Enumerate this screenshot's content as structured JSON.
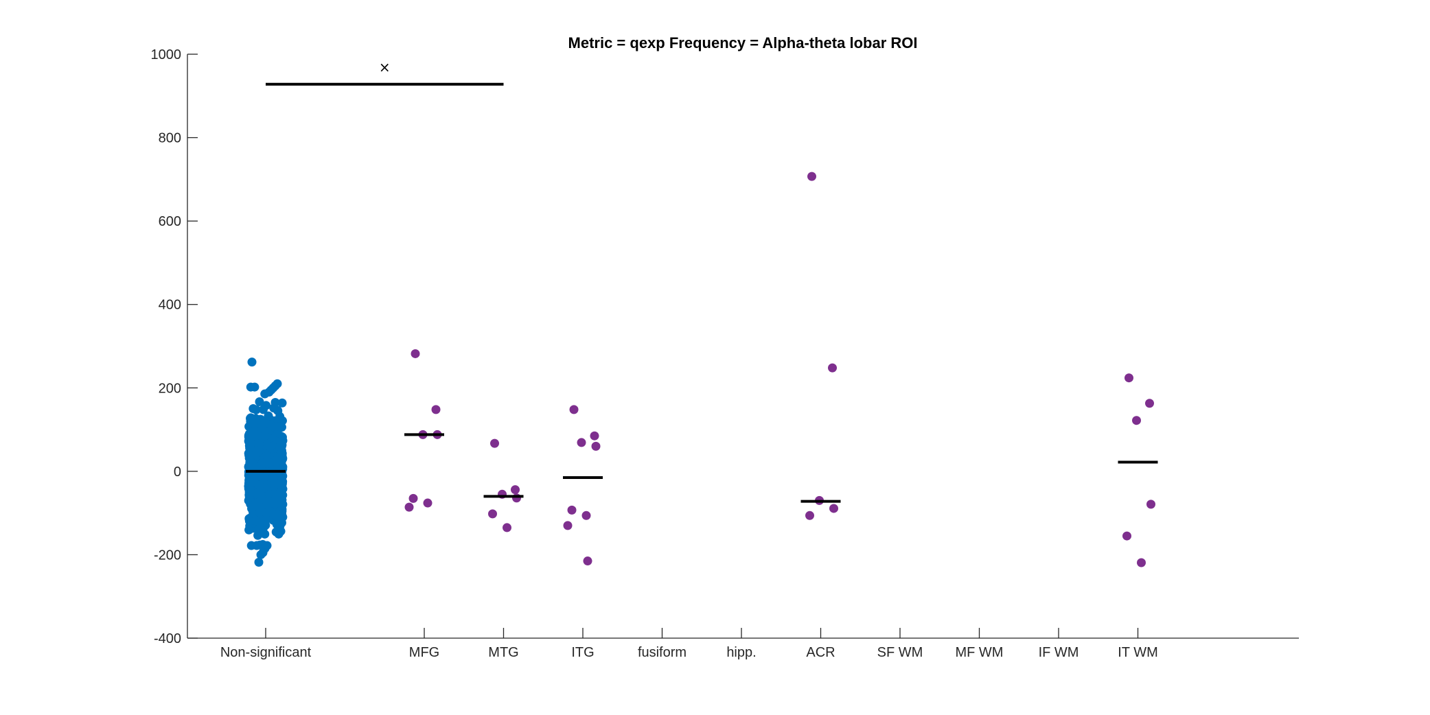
{
  "chart_data": {
    "type": "scatter",
    "title": "Metric = qexp Frequency = Alpha-theta lobar ROI",
    "xlabel": "",
    "ylabel": "",
    "ylim": [
      -400,
      1000
    ],
    "yticks": [
      -400,
      -200,
      0,
      200,
      400,
      600,
      800,
      1000
    ],
    "grid": false,
    "categories": [
      "Non-significant",
      "MFG",
      "MTG",
      "ITG",
      "fusiform",
      "hipp.",
      "ACR",
      "SF WM",
      "MF WM",
      "IF WM",
      "IT WM"
    ],
    "colors": {
      "nonsignificant": "#0072BD",
      "significant": "#7E2F8E",
      "median": "#000000",
      "axis": "#262626"
    },
    "nonsignificant": {
      "category": "Non-significant",
      "count": 1200,
      "median": 0,
      "min": -218,
      "max": 262,
      "notable_points": [
        262,
        210,
        205,
        200,
        195,
        190,
        -178,
        -185,
        -195,
        -200,
        -218
      ]
    },
    "series": [
      {
        "category": "MFG",
        "values": [
          282,
          148,
          88,
          88,
          -65,
          -76,
          -86
        ],
        "median": 88
      },
      {
        "category": "MTG",
        "values": [
          67,
          -44,
          -55,
          -64,
          -102,
          -135
        ],
        "median": -60
      },
      {
        "category": "ITG",
        "values": [
          148,
          85,
          69,
          60,
          -93,
          -106,
          -130,
          -215
        ],
        "median": -15
      },
      {
        "category": "fusiform",
        "values": [],
        "median": null
      },
      {
        "category": "hipp.",
        "values": [],
        "median": null
      },
      {
        "category": "ACR",
        "values": [
          707,
          248,
          -70,
          -89,
          -106
        ],
        "median": -72
      },
      {
        "category": "SF WM",
        "values": [],
        "median": null
      },
      {
        "category": "MF WM",
        "values": [],
        "median": null
      },
      {
        "category": "IF WM",
        "values": [],
        "median": null
      },
      {
        "category": "IT WM",
        "values": [
          224,
          163,
          122,
          -79,
          -155,
          -219
        ],
        "median": 22
      }
    ],
    "significance": {
      "from": "Non-significant",
      "to": "MTG",
      "y": 928,
      "marker": "×"
    }
  }
}
